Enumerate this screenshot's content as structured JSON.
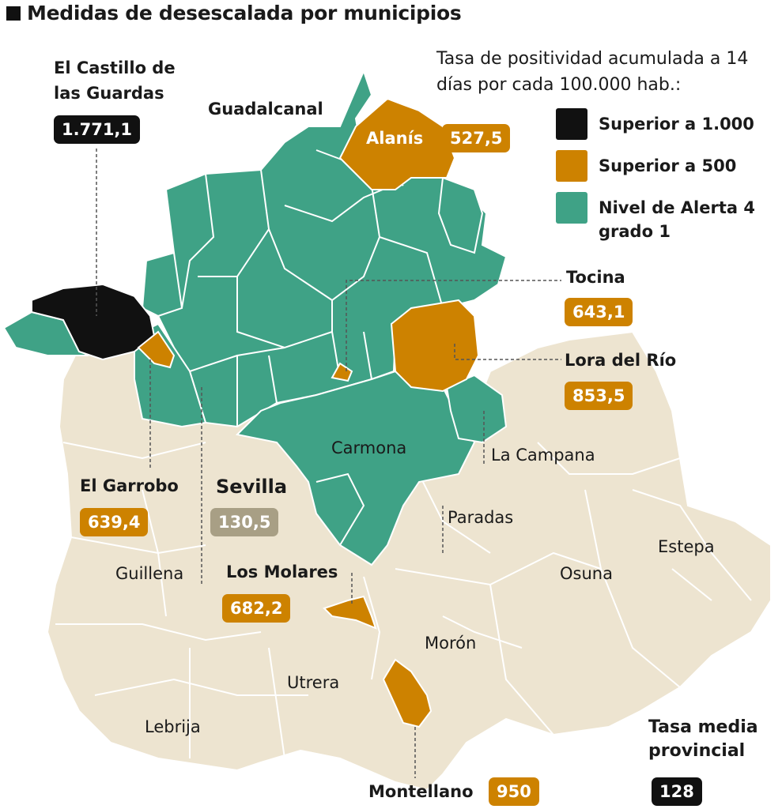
{
  "title": "Medidas de desescalada por municipios",
  "legend": {
    "title": "Tasa de positividad acumulada a 14 días por cada 100.000 hab.:",
    "items": [
      {
        "label": "Superior a 1.000",
        "color": "#111111"
      },
      {
        "label": "Superior a 500",
        "color": "#cd8200"
      },
      {
        "label": "Nivel de Alerta 4 grado 1",
        "color": "#3fa286"
      }
    ]
  },
  "colors": {
    "base": "#ede4d0",
    "border": "#ffffff",
    "above_1000": "#111111",
    "above_500": "#cd8200",
    "alert4": "#3fa286",
    "sevilla": "#a89f85"
  },
  "highlighted": {
    "castillo": {
      "name": "El Castillo de las Guardas",
      "value": "1.771,1"
    },
    "alanis": {
      "name": "Alanís",
      "value": "527,5"
    },
    "tocina": {
      "name": "Tocina",
      "value": "643,1"
    },
    "lora": {
      "name": "Lora del Río",
      "value": "853,5"
    },
    "garrobo": {
      "name": "El Garrobo",
      "value": "639,4"
    },
    "sevilla": {
      "name": "Sevilla",
      "value": "130,5"
    },
    "molares": {
      "name": "Los Molares",
      "value": "682,2"
    },
    "montellano": {
      "name": "Montellano",
      "value": "950"
    }
  },
  "places": {
    "guadalcanal": "Guadalcanal",
    "carmona": "Carmona",
    "la_campana": "La Campana",
    "paradas": "Paradas",
    "estepa": "Estepa",
    "osuna": "Osuna",
    "guillena": "Guillena",
    "moron": "Morón",
    "utrera": "Utrera",
    "lebrija": "Lebrija"
  },
  "provincial": {
    "label": "Tasa media provincial",
    "value": "128"
  }
}
